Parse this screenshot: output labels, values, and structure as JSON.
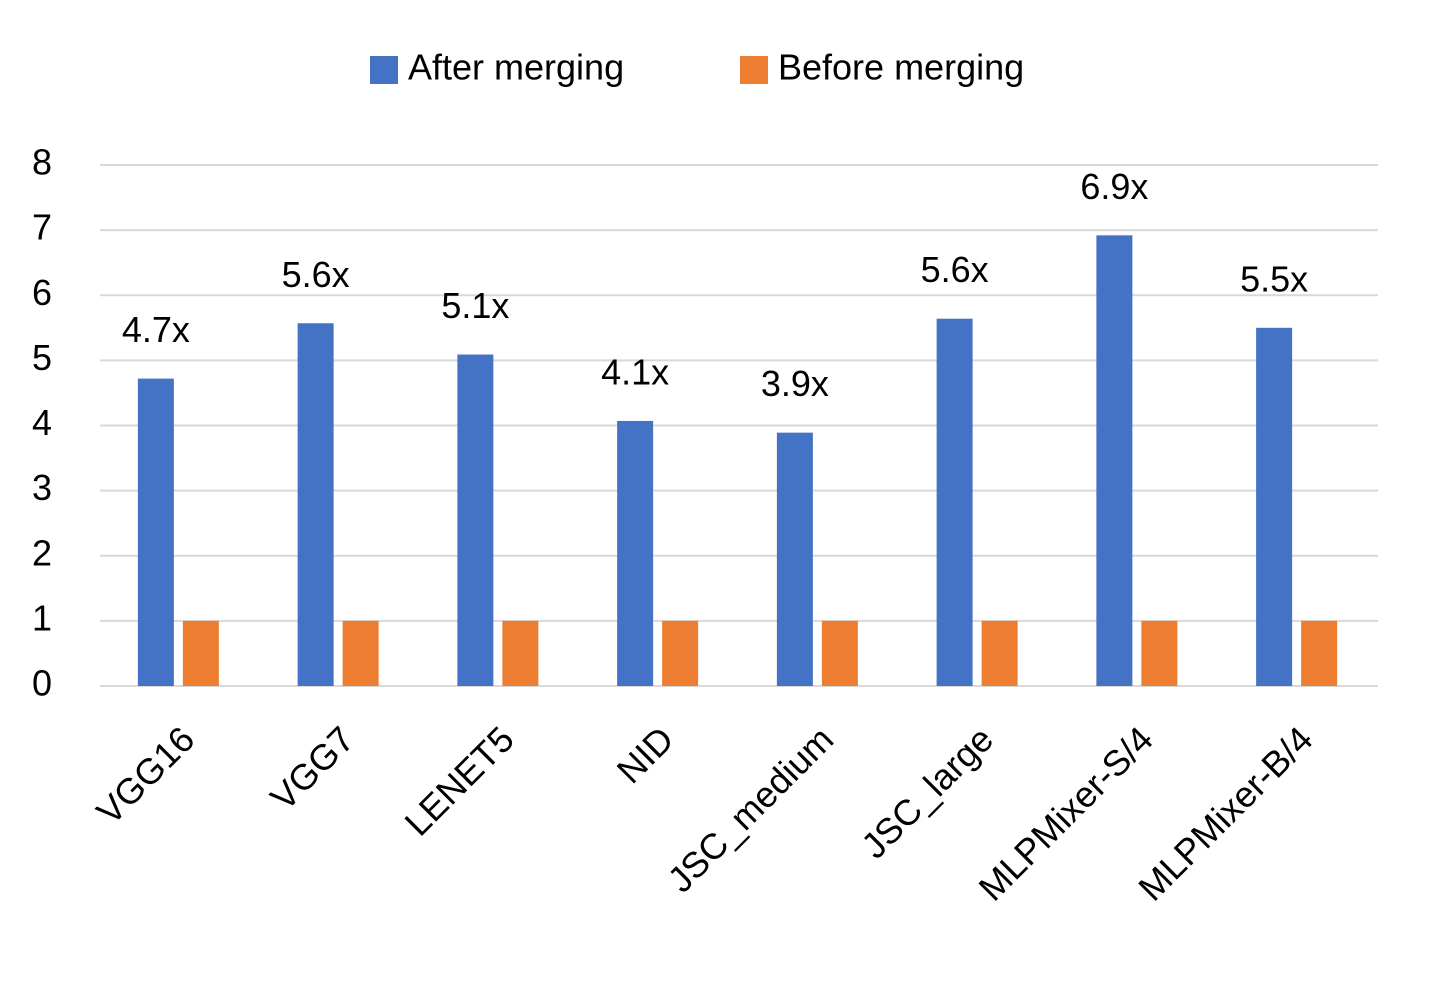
{
  "chart_data": {
    "type": "bar",
    "categories": [
      "VGG16",
      "VGG7",
      "LENET5",
      "NID",
      "JSC_medium",
      "JSC_large",
      "MLPMixer-S/4",
      "MLPMixer-B/4"
    ],
    "series": [
      {
        "name": "After merging",
        "color": "#4472c4",
        "values": [
          4.72,
          5.57,
          5.09,
          4.07,
          3.89,
          5.64,
          6.92,
          5.5
        ],
        "value_labels": [
          "4.7x",
          "5.6x",
          "5.1x",
          "4.1x",
          "3.9x",
          "5.6x",
          "6.9x",
          "5.5x"
        ]
      },
      {
        "name": "Before merging",
        "color": "#ed7d31",
        "values": [
          1,
          1,
          1,
          1,
          1,
          1,
          1,
          1
        ]
      }
    ],
    "ylim": [
      0,
      8
    ],
    "yticks": [
      0,
      1,
      2,
      3,
      4,
      5,
      6,
      7,
      8
    ],
    "grid": true,
    "legend": "top"
  }
}
